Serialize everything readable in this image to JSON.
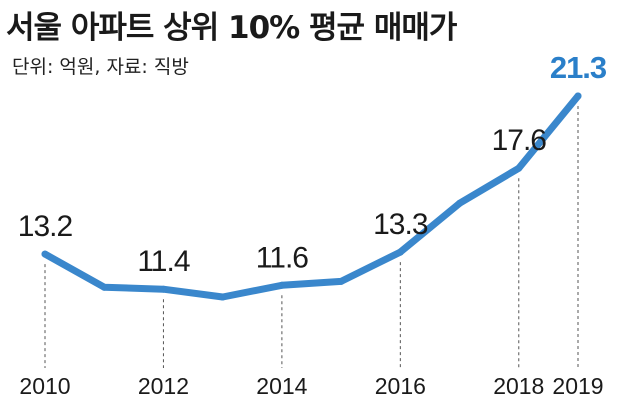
{
  "header": {
    "title": "서울 아파트 상위 10% 평균 매매가",
    "subtitle": "단위: 억원, 자료: 직방"
  },
  "chart_data": {
    "type": "line",
    "title": "서울 아파트 상위 10% 평균 매매가",
    "subtitle": "단위: 억원, 자료: 직방",
    "unit": "억원",
    "source": "직방",
    "x": [
      2010,
      2011,
      2012,
      2013,
      2014,
      2015,
      2016,
      2017,
      2018,
      2019
    ],
    "series": [
      {
        "values": [
          13.2,
          11.5,
          11.4,
          11.0,
          11.6,
          11.8,
          13.3,
          15.8,
          17.6,
          21.3
        ]
      }
    ],
    "labeled_points": [
      {
        "x": 2010,
        "label": "13.2"
      },
      {
        "x": 2012,
        "label": "11.4"
      },
      {
        "x": 2014,
        "label": "11.6"
      },
      {
        "x": 2016,
        "label": "13.3"
      },
      {
        "x": 2018,
        "label": "17.6"
      },
      {
        "x": 2019,
        "label": "21.3",
        "highlight": true
      }
    ],
    "xticks": [
      "2010",
      "2012",
      "2014",
      "2016",
      "2018",
      "2019"
    ],
    "colors": {
      "line": "#3a87cc",
      "highlight": "#2a7fc9",
      "guide": "#555555"
    },
    "grid": false,
    "legend": "none"
  }
}
